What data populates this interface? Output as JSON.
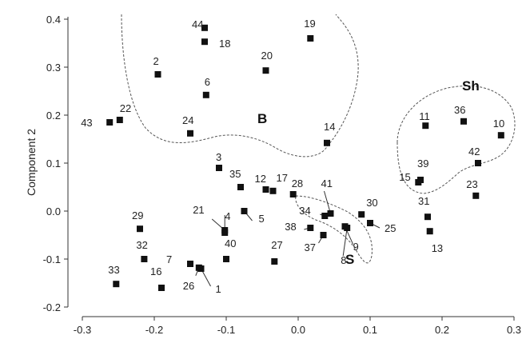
{
  "chart_data": {
    "type": "scatter",
    "title": "",
    "xlabel": "",
    "ylabel": "Component 2",
    "xlim": [
      -0.3,
      0.3
    ],
    "ylim": [
      -0.2,
      0.4
    ],
    "x_ticks": [
      "-0.3",
      "-0.2",
      "-0.1",
      "0.0",
      "0.1",
      "0.2",
      "0.3"
    ],
    "y_ticks": [
      "-0.2",
      "-0.1",
      "0.0",
      "0.1",
      "0.2",
      "0.3",
      "0.4"
    ],
    "grid": false,
    "points": [
      {
        "label": "1",
        "x": -0.135,
        "y": -0.12
      },
      {
        "label": "2",
        "x": -0.195,
        "y": 0.285
      },
      {
        "label": "3",
        "x": -0.11,
        "y": 0.09
      },
      {
        "label": "4",
        "x": -0.102,
        "y": -0.045
      },
      {
        "label": "5",
        "x": -0.075,
        "y": 0.0
      },
      {
        "label": "6",
        "x": -0.128,
        "y": 0.242
      },
      {
        "label": "7",
        "x": -0.15,
        "y": -0.11
      },
      {
        "label": "8",
        "x": 0.068,
        "y": -0.035
      },
      {
        "label": "9",
        "x": 0.065,
        "y": -0.032
      },
      {
        "label": "10",
        "x": 0.282,
        "y": 0.158
      },
      {
        "label": "11",
        "x": 0.177,
        "y": 0.178
      },
      {
        "label": "12",
        "x": -0.045,
        "y": 0.045
      },
      {
        "label": "13",
        "x": 0.183,
        "y": -0.042
      },
      {
        "label": "14",
        "x": 0.04,
        "y": 0.142
      },
      {
        "label": "15",
        "x": 0.167,
        "y": 0.06
      },
      {
        "label": "16",
        "x": -0.19,
        "y": -0.16
      },
      {
        "label": "17",
        "x": -0.035,
        "y": 0.042
      },
      {
        "label": "18",
        "x": -0.13,
        "y": 0.353
      },
      {
        "label": "19",
        "x": 0.017,
        "y": 0.36
      },
      {
        "label": "20",
        "x": -0.045,
        "y": 0.293
      },
      {
        "label": "21",
        "x": -0.102,
        "y": -0.04
      },
      {
        "label": "22",
        "x": -0.248,
        "y": 0.19
      },
      {
        "label": "23",
        "x": 0.247,
        "y": 0.032
      },
      {
        "label": "24",
        "x": -0.15,
        "y": 0.162
      },
      {
        "label": "25",
        "x": 0.1,
        "y": -0.025
      },
      {
        "label": "26",
        "x": -0.138,
        "y": -0.118
      },
      {
        "label": "27",
        "x": -0.033,
        "y": -0.105
      },
      {
        "label": "28",
        "x": -0.007,
        "y": 0.035
      },
      {
        "label": "29",
        "x": -0.22,
        "y": -0.037
      },
      {
        "label": "30",
        "x": 0.088,
        "y": -0.007
      },
      {
        "label": "31",
        "x": 0.18,
        "y": -0.012
      },
      {
        "label": "32",
        "x": -0.214,
        "y": -0.1
      },
      {
        "label": "33",
        "x": -0.253,
        "y": -0.152
      },
      {
        "label": "34",
        "x": 0.037,
        "y": -0.01
      },
      {
        "label": "35",
        "x": -0.08,
        "y": 0.05
      },
      {
        "label": "36",
        "x": 0.23,
        "y": 0.187
      },
      {
        "label": "37",
        "x": 0.035,
        "y": -0.05
      },
      {
        "label": "38",
        "x": 0.017,
        "y": -0.035
      },
      {
        "label": "39",
        "x": 0.17,
        "y": 0.065
      },
      {
        "label": "40",
        "x": -0.1,
        "y": -0.1
      },
      {
        "label": "41",
        "x": 0.045,
        "y": -0.005
      },
      {
        "label": "42",
        "x": 0.25,
        "y": 0.1
      },
      {
        "label": "43",
        "x": -0.262,
        "y": 0.185
      },
      {
        "label": "44",
        "x": -0.13,
        "y": 0.382
      }
    ],
    "groups": [
      {
        "label": "B"
      },
      {
        "label": "S"
      },
      {
        "label": "Sh"
      }
    ]
  }
}
